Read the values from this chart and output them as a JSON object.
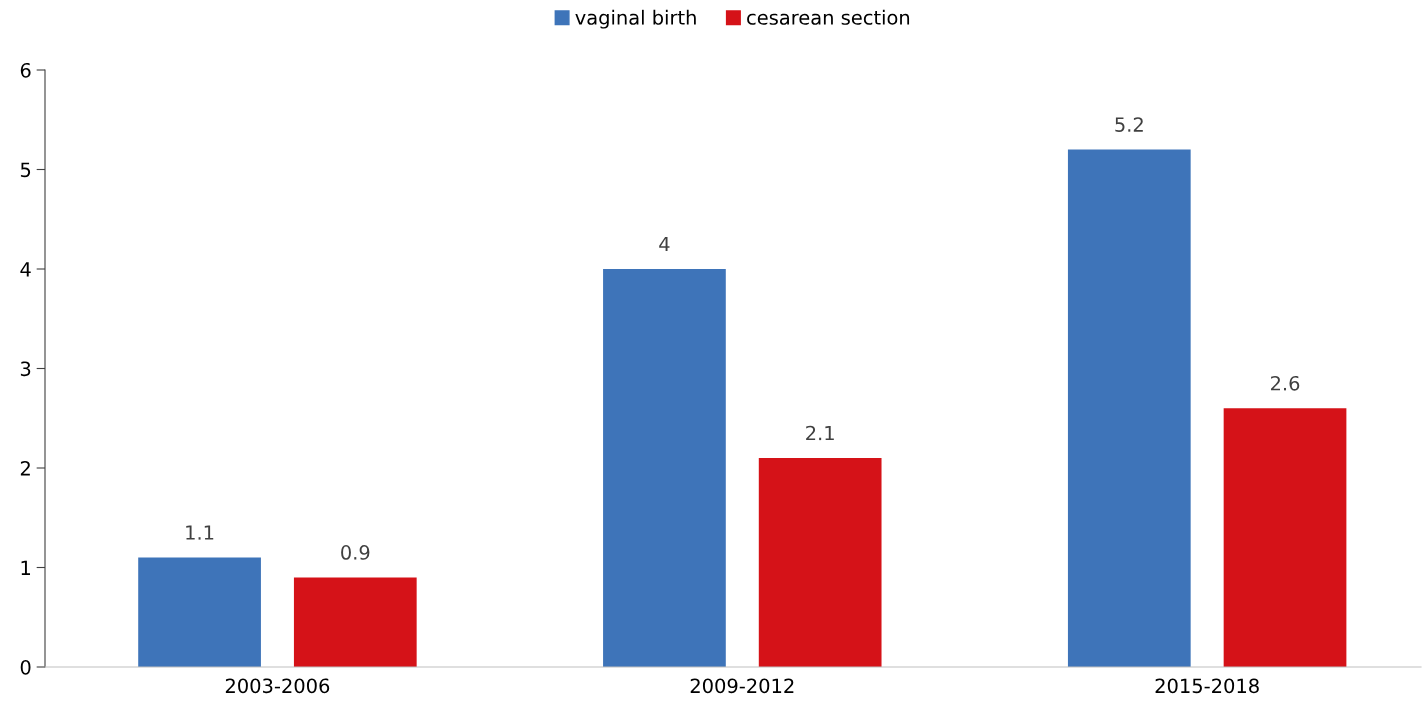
{
  "chart_data": {
    "type": "bar",
    "categories": [
      "2003-2006",
      "2009-2012",
      "2015-2018"
    ],
    "series": [
      {
        "name": "vaginal birth",
        "color": "#3e74b9",
        "values": [
          1.1,
          4,
          5.2
        ]
      },
      {
        "name": "cesarean section",
        "color": "#d51218",
        "values": [
          0.9,
          2.1,
          2.6
        ]
      }
    ],
    "ylim": [
      0,
      6
    ],
    "yticks": [
      0,
      1,
      2,
      3,
      4,
      5,
      6
    ],
    "grid": false,
    "legend": "top",
    "data_labels": true
  }
}
